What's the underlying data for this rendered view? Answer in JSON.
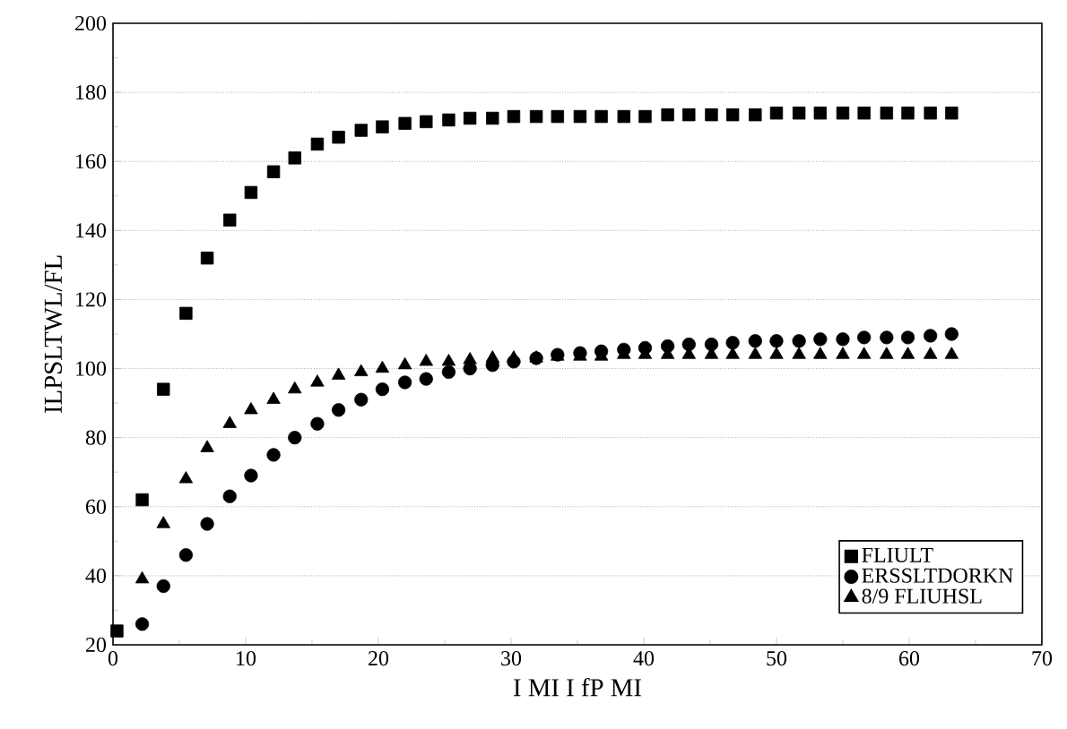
{
  "chart_data": {
    "type": "scatter",
    "xlabel": "I MI I fP MI",
    "ylabel": "ILPSLTWL/FL",
    "xlim": [
      0,
      70
    ],
    "ylim": [
      20,
      200
    ],
    "xticks": [
      0,
      10,
      20,
      30,
      40,
      50,
      60,
      70
    ],
    "yticks": [
      20,
      40,
      60,
      80,
      100,
      120,
      140,
      160,
      180,
      200
    ],
    "grid": "y",
    "legend": "bottom right",
    "series": [
      {
        "name": "FLIULT",
        "color": "#000000",
        "marker": "square",
        "x": [
          0.3,
          2.2,
          3.8,
          5.5,
          7.1,
          8.8,
          10.4,
          12.1,
          13.7,
          15.4,
          17.0,
          18.7,
          20.3,
          22.0,
          23.6,
          25.3,
          26.9,
          28.6,
          30.2,
          31.9,
          33.5,
          35.2,
          36.8,
          38.5,
          40.1,
          41.8,
          43.4,
          45.1,
          46.7,
          48.4,
          50.0,
          51.7,
          53.3,
          55.0,
          56.6,
          58.3,
          59.9,
          61.6,
          63.2
        ],
        "values": [
          24,
          62,
          94,
          116,
          132,
          143,
          151,
          157,
          161,
          165,
          167,
          169,
          170,
          171,
          171.5,
          172,
          172.5,
          172.5,
          173,
          173,
          173,
          173,
          173,
          173,
          173,
          173.5,
          173.5,
          173.5,
          173.5,
          173.5,
          174,
          174,
          174,
          174,
          174,
          174,
          174,
          174,
          174
        ]
      },
      {
        "name": "ERSSLTDORKN",
        "color": "#000000",
        "marker": "circle",
        "x": [
          2.2,
          3.8,
          5.5,
          7.1,
          8.8,
          10.4,
          12.1,
          13.7,
          15.4,
          17.0,
          18.7,
          20.3,
          22.0,
          23.6,
          25.3,
          26.9,
          28.6,
          30.2,
          31.9,
          33.5,
          35.2,
          36.8,
          38.5,
          40.1,
          41.8,
          43.4,
          45.1,
          46.7,
          48.4,
          50.0,
          51.7,
          53.3,
          55.0,
          56.6,
          58.3,
          59.9,
          61.6,
          63.2
        ],
        "values": [
          26,
          37,
          46,
          55,
          63,
          69,
          75,
          80,
          84,
          88,
          91,
          94,
          96,
          97,
          99,
          100,
          101,
          102,
          103,
          104,
          104.5,
          105,
          105.5,
          106,
          106.5,
          107,
          107,
          107.5,
          108,
          108,
          108,
          108.5,
          108.5,
          109,
          109,
          109,
          109.5,
          110
        ]
      },
      {
        "name": "8/9 FLIUHSL",
        "color": "#000000",
        "marker": "triangle",
        "x": [
          2.2,
          3.8,
          5.5,
          7.1,
          8.8,
          10.4,
          12.1,
          13.7,
          15.4,
          17.0,
          18.7,
          20.3,
          22.0,
          23.6,
          25.3,
          26.9,
          28.6,
          30.2,
          31.9,
          33.5,
          35.2,
          36.8,
          38.5,
          40.1,
          41.8,
          43.4,
          45.1,
          46.7,
          48.4,
          50.0,
          51.7,
          53.3,
          55.0,
          56.6,
          58.3,
          59.9,
          61.6,
          63.2
        ],
        "values": [
          39,
          55,
          68,
          77,
          84,
          88,
          91,
          94,
          96,
          98,
          99,
          100,
          101,
          102,
          102,
          102.5,
          103,
          103,
          103,
          103.5,
          103.5,
          103.5,
          104,
          104,
          104,
          104,
          104,
          104,
          104,
          104,
          104,
          104,
          104,
          104,
          104,
          104,
          104,
          104
        ]
      }
    ]
  }
}
